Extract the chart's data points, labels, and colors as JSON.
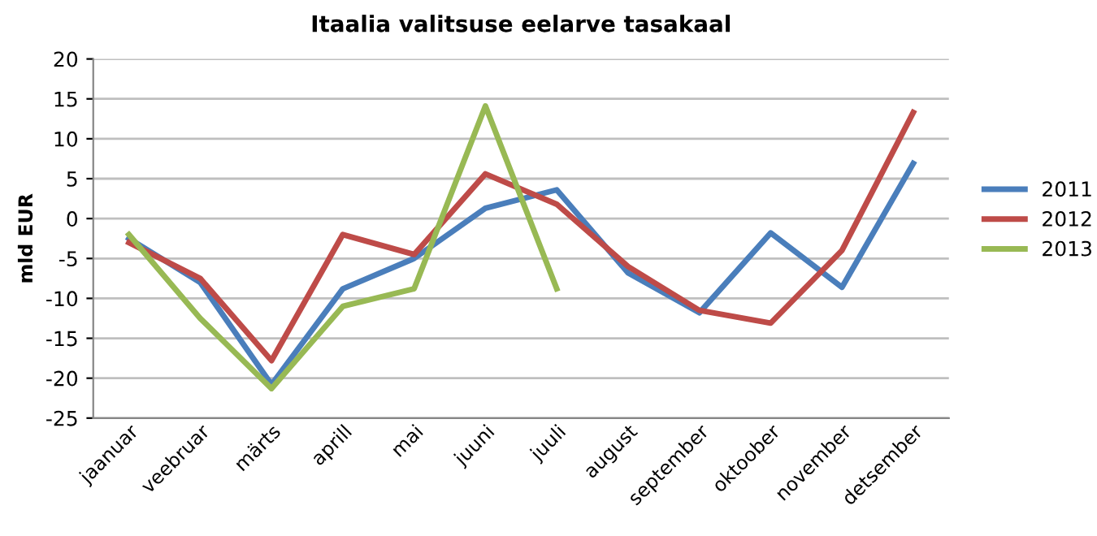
{
  "chart_data": {
    "type": "line",
    "title": "Itaalia valitsuse eelarve tasakaal",
    "ylabel": "mld EUR",
    "categories": [
      "jaanuar",
      "veebruar",
      "märts",
      "aprill",
      "mai",
      "juuni",
      "juuli",
      "august",
      "september",
      "oktoober",
      "november",
      "detsember"
    ],
    "series": [
      {
        "name": "2011",
        "color": "#4a7ebb",
        "values": [
          -2.5,
          -8,
          -20.8,
          -8.8,
          -5,
          1.3,
          3.6,
          -6.8,
          -11.8,
          -1.8,
          -8.6,
          6.9
        ]
      },
      {
        "name": "2012",
        "color": "#be4b48",
        "values": [
          -3,
          -7.5,
          -17.8,
          -2,
          -4.5,
          5.6,
          1.8,
          -6,
          -11.5,
          -13.1,
          -4,
          13.3
        ]
      },
      {
        "name": "2013",
        "color": "#98b954",
        "values": [
          -2,
          -12.5,
          -21.3,
          -11,
          -8.8,
          14.1,
          -8.8,
          null,
          null,
          null,
          null,
          null
        ]
      }
    ],
    "ylim": [
      -25,
      20
    ],
    "yticks": [
      -25,
      -20,
      -15,
      -10,
      -5,
      0,
      5,
      10,
      15,
      20
    ],
    "grid": "y",
    "legend": "right",
    "marker": "none",
    "line_style": "solid"
  }
}
